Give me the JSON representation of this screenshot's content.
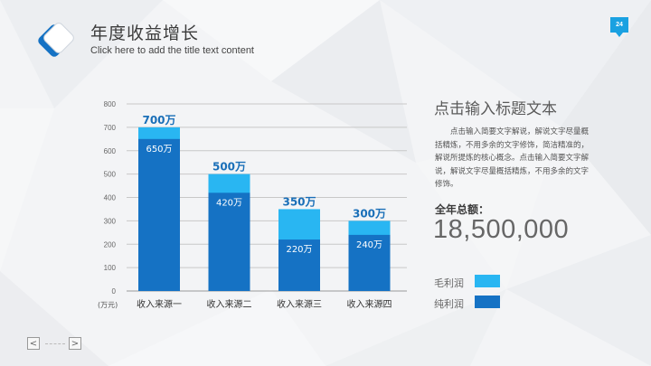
{
  "header": {
    "title": "年度收益增长",
    "subtitle": "Click here to add the title text content",
    "page_number": "24"
  },
  "side_panel": {
    "title": "点击输入标题文本",
    "description": "点击输入简要文字解说，解说文字尽量概括精炼，不用多余的文字修饰，简洁精准的，解说所提炼的核心概念。点击输入简要文字解说，解说文字尽量概括精炼，不用多余的文字修饰。",
    "total_label": "全年总额：",
    "total_value": "18,500,000"
  },
  "legend": [
    {
      "label": "毛利润",
      "color": "#29b6f2"
    },
    {
      "label": "纯利润",
      "color": "#1572c4"
    }
  ],
  "navigation": {
    "prev_icon": "chevron-left-icon",
    "next_icon": "chevron-right-icon",
    "prev": "<",
    "next": ">"
  },
  "colors": {
    "accent": "#1aa1e1",
    "gross": "#29b6f2",
    "net": "#1572c4",
    "label_blue": "#1a6fb8"
  },
  "chart_data": {
    "type": "bar",
    "stacked": "overlay",
    "categories": [
      "收入来源一",
      "收入来源二",
      "收入来源三",
      "收入来源四"
    ],
    "series": [
      {
        "name": "毛利润",
        "values": [
          700,
          500,
          350,
          300
        ],
        "labels": [
          "700万",
          "500万",
          "350万",
          "300万"
        ]
      },
      {
        "name": "纯利润",
        "values": [
          650,
          420,
          220,
          240
        ],
        "labels": [
          "650万",
          "420万",
          "220万",
          "240万"
        ]
      }
    ],
    "ylim": [
      0,
      800
    ],
    "yticks": [
      0,
      100,
      200,
      300,
      400,
      500,
      600,
      700,
      800
    ],
    "ylabel": "(万元)",
    "grid": true
  }
}
